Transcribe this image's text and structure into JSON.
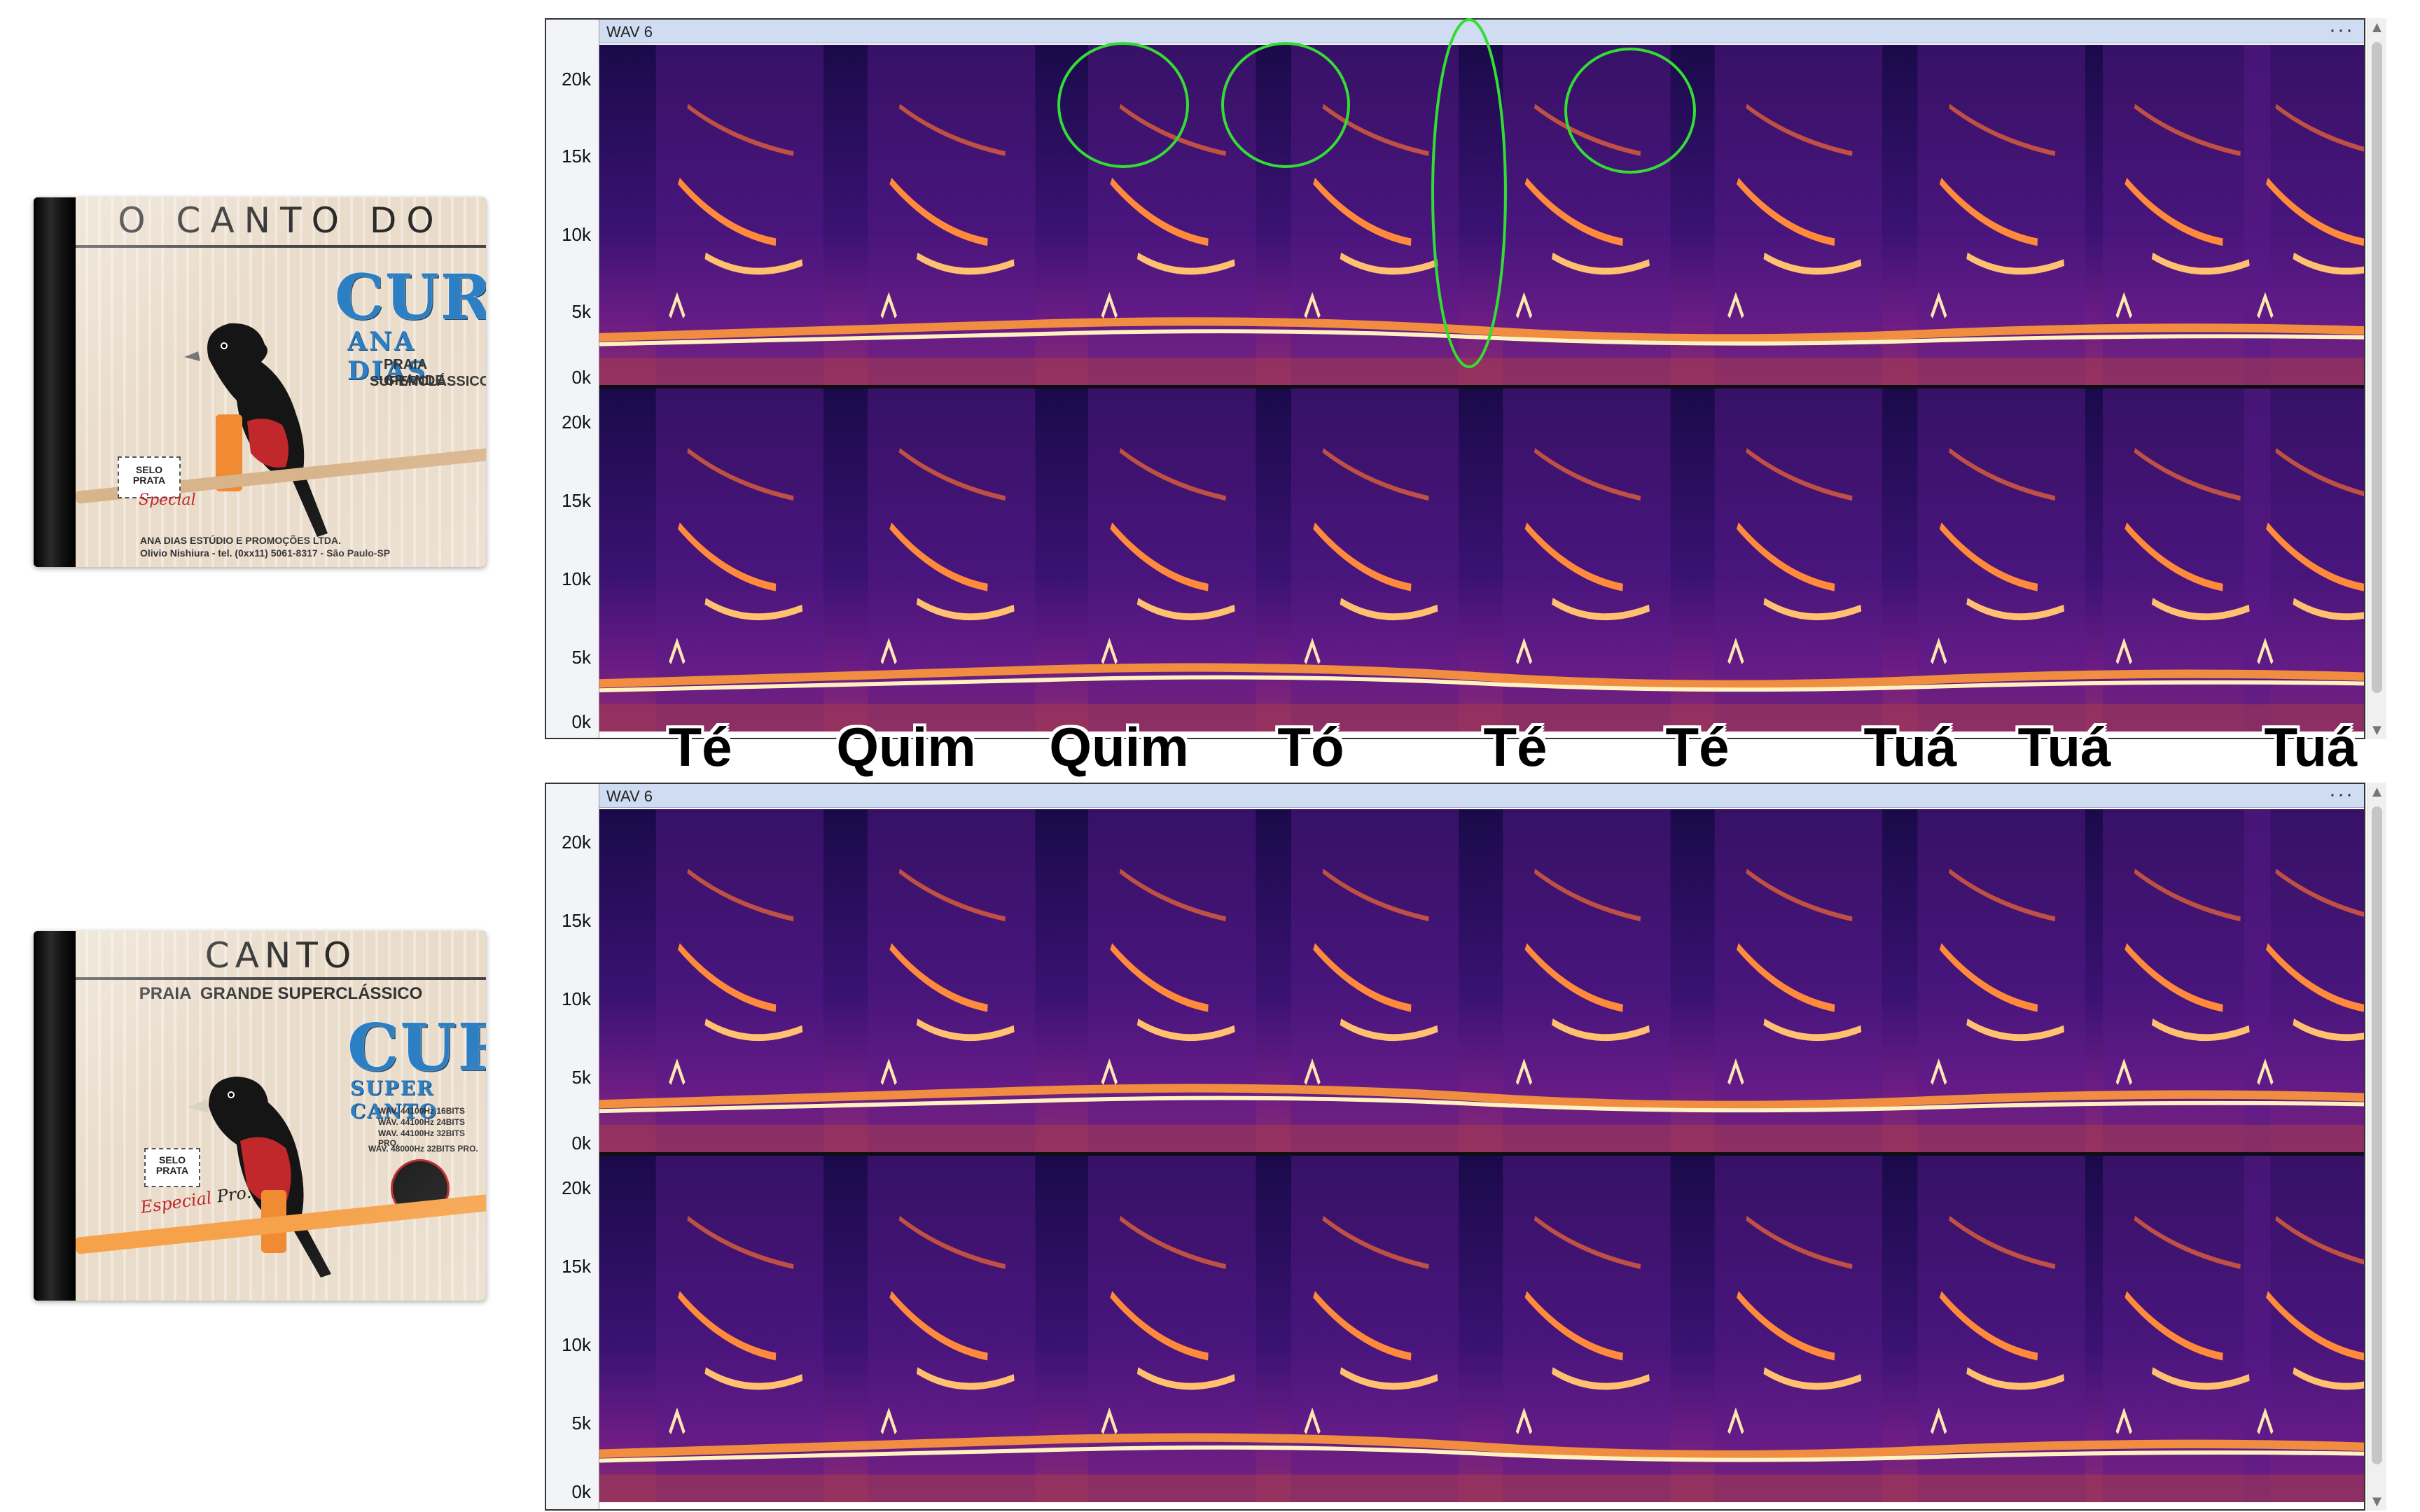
{
  "cd_top": {
    "title": "O CANTO DO",
    "brand": "CURIÓ",
    "subtitle": "ANA DIAS",
    "tagline_1": "PRAIA GRANDE",
    "tagline_2": "SUPERCLÁSSICO",
    "stamp_1": "SELO",
    "stamp_2": "PRATA",
    "special": "Special",
    "footer_1": "ANA DIAS ESTÚDIO E PROMOÇÕES LTDA.",
    "footer_2": "Olivio Nishiura - tel. (0xx11) 5061-8317 - São Paulo-SP"
  },
  "cd_bottom": {
    "title": "CANTO",
    "tagline": "PRAIA  GRANDE SUPERCLÁSSICO",
    "brand": "CURIÓ",
    "subtitle": "SUPER CANTO",
    "spec_1": "WAV. 44100Hz 16BITS",
    "spec_2": "WAV. 44100Hz 24BITS",
    "spec_3": "WAV. 44100Hz 32BITS PRO.",
    "spec_4": "WAV. 48000Hz 32BITS PRO.",
    "stamp_1": "SELO",
    "stamp_2": "PRATA",
    "special": "Especial",
    "pro": "Pro."
  },
  "spectrogram_top": {
    "track_name": "WAV 6",
    "menu": "···",
    "axis_labels": [
      "20k",
      "15k",
      "10k",
      "5k",
      "0k"
    ]
  },
  "spectrogram_bottom": {
    "track_name": "WAV 6",
    "menu": "···",
    "axis_labels": [
      "20k",
      "15k",
      "10k",
      "5k",
      "0k"
    ]
  },
  "syllables": [
    "Té",
    "Quim",
    "Quim",
    "Tó",
    "Té",
    "Té",
    "Tuá",
    "Tuá",
    "Tuá"
  ],
  "colors": {
    "spectro_bg": "#2a0f5c",
    "highlight": "#33dd33",
    "accent": "#2d7fc4"
  }
}
